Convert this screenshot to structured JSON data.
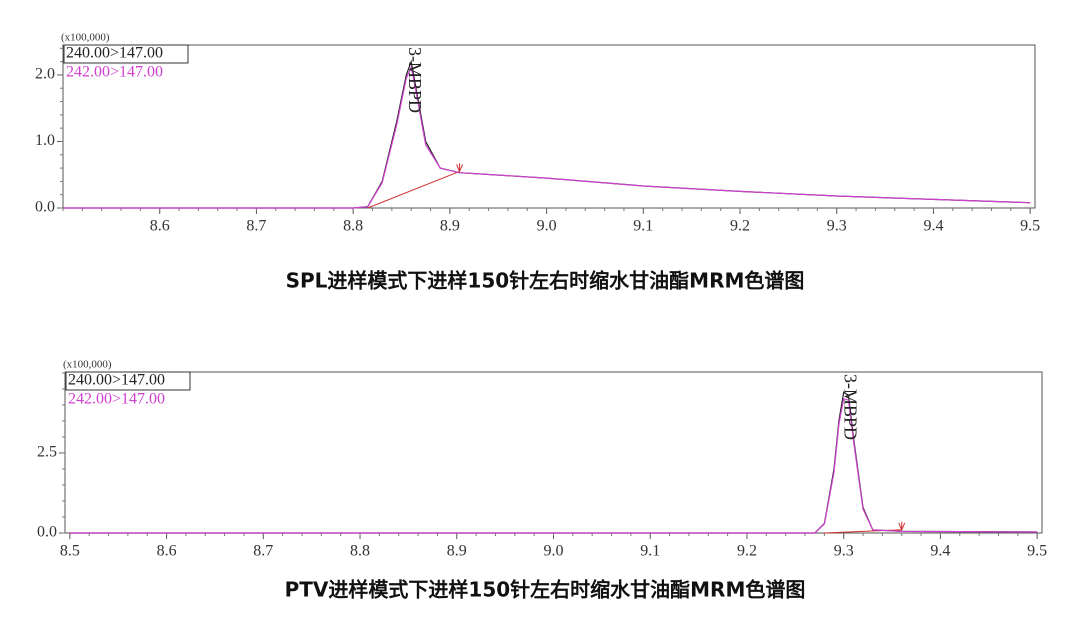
{
  "chart_data": [
    {
      "type": "line",
      "title": "SPL进样模式下进样150针左右时缩水甘油酯MRM色谱图",
      "y_unit": "(x100,000)",
      "x": [
        8.5,
        8.8,
        8.815,
        8.83,
        8.845,
        8.855,
        8.86,
        8.865,
        8.875,
        8.89,
        8.91,
        9.0,
        9.1,
        9.2,
        9.3,
        9.4,
        9.5
      ],
      "series": [
        {
          "name": "240.00>147.00",
          "color": "#222222",
          "values": [
            0,
            0,
            0.02,
            0.4,
            1.3,
            2.0,
            2.2,
            1.8,
            1.0,
            0.6,
            0.53,
            0.45,
            0.33,
            0.25,
            0.18,
            0.13,
            0.08
          ]
        },
        {
          "name": "242.00>147.00",
          "color": "#d040d0",
          "values": [
            0,
            0,
            0.02,
            0.38,
            1.25,
            1.95,
            2.12,
            1.75,
            0.95,
            0.6,
            0.53,
            0.45,
            0.33,
            0.25,
            0.18,
            0.13,
            0.08
          ]
        }
      ],
      "baseline": {
        "color": "#d03030",
        "x": [
          8.815,
          8.91
        ],
        "y": [
          0,
          0.55
        ]
      },
      "annotations": [
        {
          "text": "3-MBPD",
          "x": 8.862
        }
      ],
      "xlim": [
        8.5,
        9.505
      ],
      "xticks": [
        8.6,
        8.7,
        8.8,
        8.9,
        {
          "value": 9.0,
          "label": "9.0"
        },
        9.1,
        9.2,
        9.3,
        9.4,
        9.5
      ],
      "ylim": [
        0,
        2.45
      ],
      "yticks": [
        {
          "value": 0,
          "label": "0.0"
        },
        {
          "value": 1,
          "label": "1.0"
        },
        {
          "value": 2,
          "label": "2.0"
        }
      ]
    },
    {
      "type": "line",
      "title": "PTV进样模式下进样150针左右时缩水甘油酯MRM色谱图",
      "y_unit": "(x100,000)",
      "x": [
        8.5,
        9.27,
        9.28,
        9.29,
        9.295,
        9.3,
        9.305,
        9.31,
        9.32,
        9.33,
        9.36,
        9.5
      ],
      "series": [
        {
          "name": "240.00>147.00",
          "color": "#222222",
          "values": [
            0,
            0,
            0.3,
            2.0,
            3.5,
            4.4,
            4.3,
            3.0,
            0.8,
            0.1,
            0.05,
            0.03
          ]
        },
        {
          "name": "242.00>147.00",
          "color": "#d040d0",
          "values": [
            0,
            0,
            0.28,
            1.9,
            3.4,
            4.2,
            4.15,
            2.9,
            0.75,
            0.1,
            0.05,
            0.03
          ]
        }
      ],
      "baseline": {
        "color": "#d03030",
        "x": [
          9.28,
          9.36
        ],
        "y": [
          0,
          0.1
        ]
      },
      "annotations": [
        {
          "text": "3-MBPD",
          "x": 9.305
        }
      ],
      "xlim": [
        8.495,
        9.505
      ],
      "xticks": [
        8.5,
        8.6,
        8.7,
        8.8,
        8.9,
        {
          "value": 9.0,
          "label": "9.0"
        },
        9.1,
        9.2,
        9.3,
        9.4,
        9.5
      ],
      "ylim": [
        0,
        5.03
      ],
      "yticks": [
        {
          "value": 0,
          "label": "0.0"
        },
        2.5
      ]
    }
  ]
}
